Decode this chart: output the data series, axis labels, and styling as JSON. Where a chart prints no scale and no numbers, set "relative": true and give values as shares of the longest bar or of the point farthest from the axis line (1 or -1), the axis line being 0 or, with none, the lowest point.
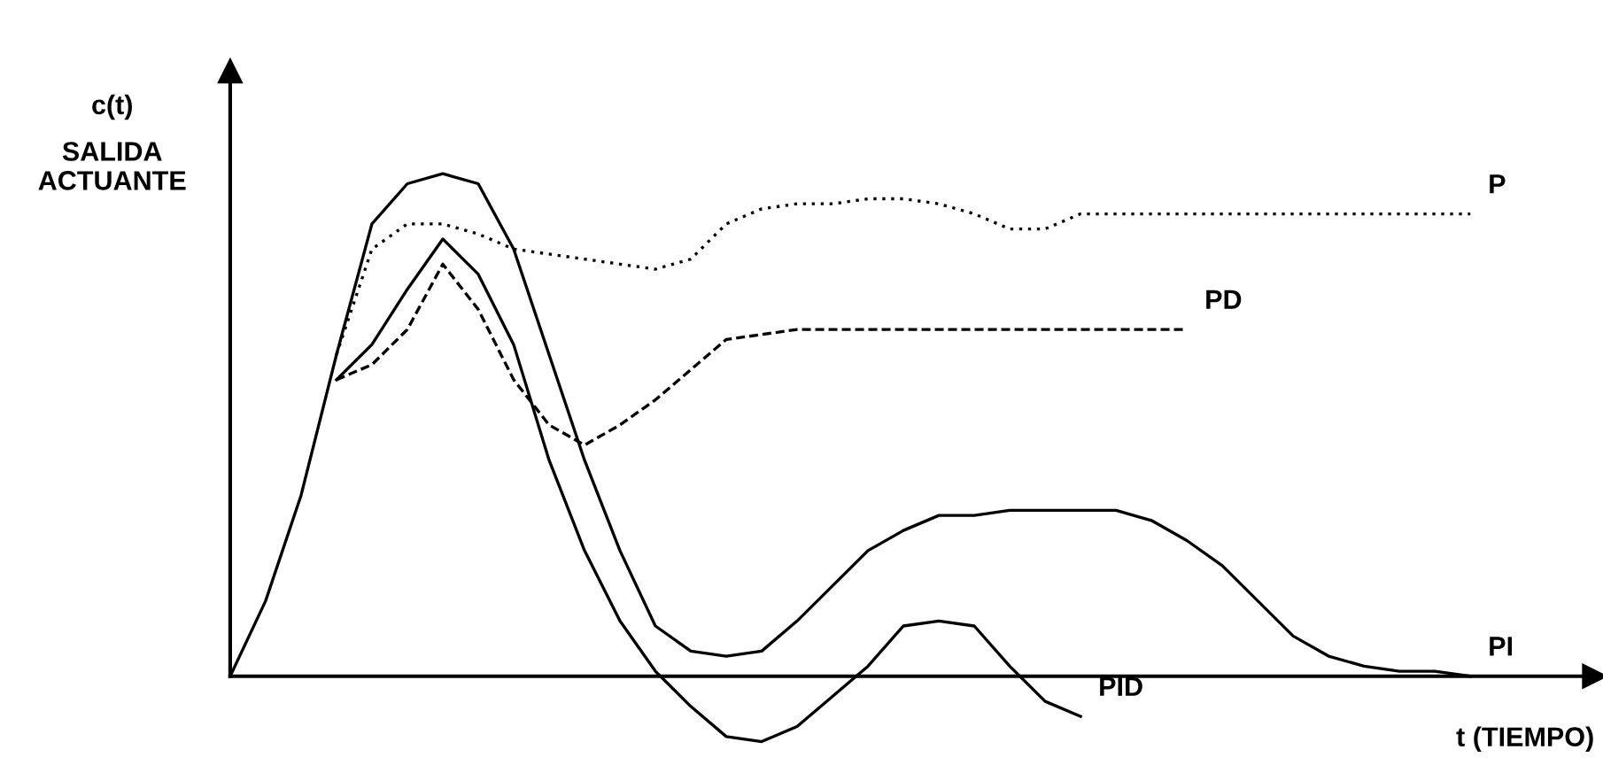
{
  "chart_data": {
    "type": "line",
    "relative": true,
    "ylabel": "c(t)",
    "xlabel": "t (TIEMPO)",
    "annotations": [
      "SALIDA ACTUANTE"
    ],
    "grid": false,
    "categories": [
      null,
      null,
      null,
      null,
      null,
      null,
      null,
      null,
      null,
      null,
      null,
      null,
      null,
      null,
      null,
      null,
      null,
      null,
      null,
      null,
      null,
      null,
      null,
      null,
      null,
      null,
      null,
      null,
      null,
      null,
      null,
      null,
      null,
      null,
      null,
      null
    ],
    "series": [
      {
        "name": "P",
        "color": "#000000",
        "line_style": "dotted",
        "values": [
          null,
          null,
          null,
          0.64,
          0.85,
          0.9,
          0.9,
          0.88,
          0.85,
          0.84,
          0.83,
          0.82,
          0.81,
          0.83,
          0.9,
          0.93,
          0.94,
          0.94,
          0.95,
          0.95,
          0.94,
          0.92,
          0.89,
          0.89,
          0.92,
          0.92,
          0.92,
          0.92,
          0.92,
          0.92,
          0.92,
          0.92,
          0.92,
          0.92,
          0.92,
          0.92
        ]
      },
      {
        "name": "PD",
        "color": "#000000",
        "line_style": "dashed",
        "values": [
          null,
          null,
          null,
          0.59,
          0.62,
          0.69,
          0.82,
          0.73,
          0.59,
          0.5,
          0.46,
          0.5,
          0.55,
          0.61,
          0.67,
          0.68,
          0.69,
          0.69,
          0.69,
          0.69,
          0.69,
          0.69,
          0.69,
          0.69,
          0.69,
          0.69,
          0.69,
          0.69,
          null,
          null,
          null,
          null,
          null,
          null,
          null,
          null
        ]
      },
      {
        "name": "PI",
        "color": "#000000",
        "line_style": "solid",
        "values": [
          0,
          0.15,
          0.36,
          0.64,
          0.9,
          0.98,
          1,
          0.98,
          0.85,
          0.64,
          0.43,
          0.25,
          0.1,
          0.05,
          0.04,
          0.05,
          0.11,
          0.18,
          0.25,
          0.29,
          0.32,
          0.32,
          0.33,
          0.33,
          0.33,
          0.33,
          0.31,
          0.27,
          0.22,
          0.15,
          0.08,
          0.04,
          0.02,
          0.01,
          0.01,
          0
        ]
      },
      {
        "name": "PID",
        "color": "#000000",
        "line_style": "solid",
        "values": [
          null,
          null,
          null,
          0.59,
          0.66,
          0.77,
          0.87,
          0.8,
          0.66,
          0.43,
          0.25,
          0.11,
          0.01,
          -0.06,
          -0.12,
          -0.13,
          -0.1,
          -0.04,
          0.02,
          0.1,
          0.11,
          0.1,
          0.02,
          -0.05,
          -0.08,
          null,
          null,
          null,
          null,
          null,
          null,
          null,
          null,
          null,
          null,
          null
        ]
      }
    ]
  }
}
